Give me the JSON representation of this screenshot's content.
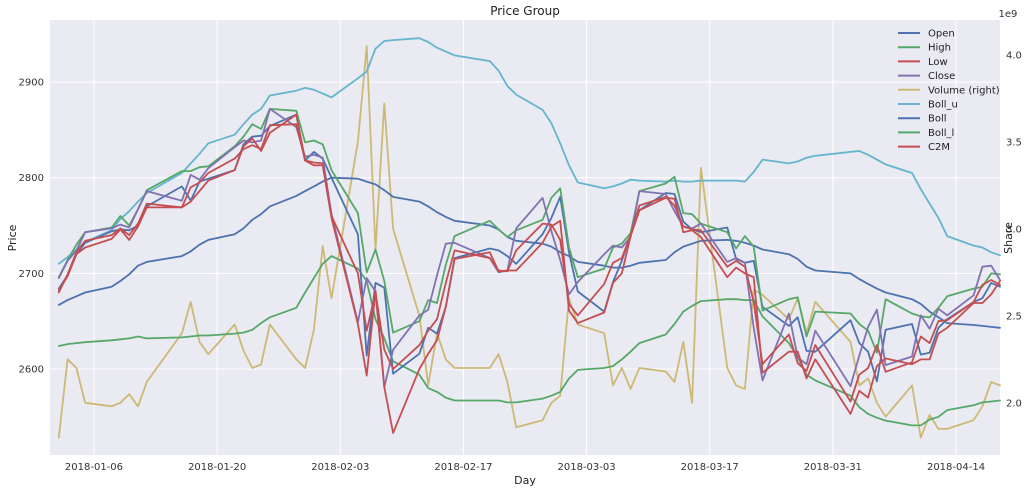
{
  "chart_data": {
    "type": "line",
    "title": "Price Group",
    "xlabel": "Day",
    "ylabel": "Price",
    "ylabel_right": "Share",
    "right_offset_label": "1e9",
    "xlim": [
      "2018-01-01",
      "2018-04-19"
    ],
    "ylim": [
      2510,
      2965
    ],
    "ylim_right": [
      1.7,
      4.2
    ],
    "x_ticks": [
      "2018-01-06",
      "2018-01-20",
      "2018-02-03",
      "2018-02-17",
      "2018-03-03",
      "2018-03-17",
      "2018-03-31",
      "2018-04-14"
    ],
    "y_ticks": [
      2600,
      2700,
      2800,
      2900
    ],
    "y_ticks_right": [
      "2.0",
      "2.5",
      "3.0",
      "3.5",
      "4.0"
    ],
    "grid": true,
    "legend_position": "top-right",
    "x": [
      "2018-01-02",
      "2018-01-03",
      "2018-01-04",
      "2018-01-05",
      "2018-01-08",
      "2018-01-09",
      "2018-01-10",
      "2018-01-11",
      "2018-01-12",
      "2018-01-16",
      "2018-01-17",
      "2018-01-18",
      "2018-01-19",
      "2018-01-22",
      "2018-01-23",
      "2018-01-24",
      "2018-01-25",
      "2018-01-26",
      "2018-01-29",
      "2018-01-30",
      "2018-01-31",
      "2018-02-01",
      "2018-02-02",
      "2018-02-05",
      "2018-02-06",
      "2018-02-07",
      "2018-02-08",
      "2018-02-09",
      "2018-02-12",
      "2018-02-13",
      "2018-02-14",
      "2018-02-15",
      "2018-02-16",
      "2018-02-20",
      "2018-02-21",
      "2018-02-22",
      "2018-02-23",
      "2018-02-26",
      "2018-02-27",
      "2018-02-28",
      "2018-03-01",
      "2018-03-02",
      "2018-03-05",
      "2018-03-06",
      "2018-03-07",
      "2018-03-08",
      "2018-03-09",
      "2018-03-12",
      "2018-03-13",
      "2018-03-14",
      "2018-03-15",
      "2018-03-16",
      "2018-03-19",
      "2018-03-20",
      "2018-03-21",
      "2018-03-22",
      "2018-03-23",
      "2018-03-26",
      "2018-03-27",
      "2018-03-28",
      "2018-03-29",
      "2018-04-02",
      "2018-04-03",
      "2018-04-04",
      "2018-04-05",
      "2018-04-06",
      "2018-04-09",
      "2018-04-10",
      "2018-04-11",
      "2018-04-12",
      "2018-04-13",
      "2018-04-16",
      "2018-04-17",
      "2018-04-18",
      "2018-04-19"
    ],
    "series": [
      {
        "name": "Open",
        "axis": "left",
        "color": "#4c72b0",
        "values": [
          2684,
          2698,
          2720,
          2732,
          2744,
          2746,
          2745,
          2750,
          2770,
          2791,
          2776,
          2796,
          2799,
          2808,
          2835,
          2843,
          2844,
          2854,
          2866,
          2818,
          2827,
          2820,
          2800,
          2741,
          2614,
          2690,
          2685,
          2595,
          2616,
          2643,
          2637,
          2665,
          2716,
          2726,
          2724,
          2718,
          2710,
          2741,
          2758,
          2780,
          2722,
          2681,
          2660,
          2691,
          2713,
          2741,
          2766,
          2784,
          2783,
          2754,
          2746,
          2743,
          2748,
          2715,
          2711,
          2713,
          2665,
          2645,
          2654,
          2619,
          2618,
          2651,
          2627,
          2618,
          2587,
          2641,
          2647,
          2615,
          2617,
          2643,
          2652,
          2670,
          2674,
          2690,
          2686
        ]
      },
      {
        "name": "High",
        "axis": "left",
        "color": "#55a868",
        "values": [
          2696,
          2714,
          2730,
          2743,
          2748,
          2760,
          2750,
          2767,
          2787,
          2807,
          2807,
          2811,
          2812,
          2833,
          2843,
          2856,
          2851,
          2872,
          2870,
          2837,
          2839,
          2835,
          2808,
          2763,
          2701,
          2725,
          2692,
          2638,
          2650,
          2672,
          2669,
          2709,
          2739,
          2755,
          2746,
          2738,
          2745,
          2756,
          2779,
          2789,
          2727,
          2696,
          2705,
          2727,
          2731,
          2742,
          2786,
          2794,
          2801,
          2763,
          2762,
          2752,
          2743,
          2726,
          2739,
          2728,
          2661,
          2673,
          2675,
          2634,
          2660,
          2658,
          2647,
          2640,
          2617,
          2673,
          2658,
          2655,
          2654,
          2664,
          2676,
          2684,
          2686,
          2700,
          2699
        ]
      },
      {
        "name": "Low",
        "axis": "left",
        "color": "#c44e52",
        "values": [
          2682,
          2697,
          2720,
          2727,
          2736,
          2746,
          2735,
          2749,
          2769,
          2769,
          2775,
          2786,
          2797,
          2808,
          2833,
          2841,
          2828,
          2847,
          2866,
          2818,
          2813,
          2813,
          2758,
          2647,
          2593,
          2682,
          2581,
          2533,
          2600,
          2616,
          2630,
          2665,
          2715,
          2722,
          2702,
          2703,
          2703,
          2732,
          2749,
          2755,
          2661,
          2648,
          2659,
          2690,
          2700,
          2739,
          2766,
          2779,
          2778,
          2743,
          2745,
          2738,
          2696,
          2706,
          2700,
          2696,
          2596,
          2618,
          2618,
          2590,
          2610,
          2553,
          2577,
          2570,
          2603,
          2611,
          2605,
          2610,
          2610,
          2637,
          2643,
          2669,
          2669,
          2678,
          2692
        ]
      },
      {
        "name": "Close",
        "axis": "left",
        "color": "#8172b2",
        "values": [
          2695,
          2713,
          2724,
          2743,
          2747,
          2751,
          2748,
          2767,
          2786,
          2776,
          2803,
          2798,
          2810,
          2832,
          2839,
          2837,
          2839,
          2872,
          2853,
          2822,
          2824,
          2821,
          2762,
          2649,
          2695,
          2681,
          2581,
          2620,
          2656,
          2662,
          2698,
          2731,
          2732,
          2716,
          2701,
          2703,
          2747,
          2779,
          2744,
          2714,
          2678,
          2691,
          2720,
          2729,
          2727,
          2738,
          2786,
          2783,
          2765,
          2749,
          2747,
          2752,
          2712,
          2716,
          2711,
          2643,
          2588,
          2658,
          2612,
          2605,
          2640,
          2582,
          2614,
          2644,
          2662,
          2604,
          2613,
          2656,
          2642,
          2663,
          2656,
          2677,
          2707,
          2708,
          2693
        ]
      },
      {
        "name": "Volume (right)",
        "axis": "right",
        "color": "#ccb974",
        "values": [
          1.8,
          2.25,
          2.2,
          2.0,
          1.98,
          2.0,
          2.05,
          1.98,
          2.12,
          2.4,
          2.58,
          2.35,
          2.28,
          2.45,
          2.3,
          2.2,
          2.22,
          2.45,
          2.25,
          2.2,
          2.42,
          2.9,
          2.6,
          3.5,
          4.05,
          2.88,
          3.72,
          3.0,
          2.5,
          2.1,
          2.4,
          2.25,
          2.2,
          2.2,
          2.28,
          2.12,
          1.86,
          1.9,
          2.0,
          2.04,
          2.6,
          2.45,
          2.4,
          2.1,
          2.2,
          2.08,
          2.2,
          2.18,
          2.12,
          2.35,
          2.0,
          3.35,
          2.2,
          2.1,
          2.08,
          2.65,
          2.62,
          2.48,
          2.6,
          2.4,
          2.58,
          2.35,
          2.1,
          2.14,
          2.0,
          1.92,
          2.1,
          1.8,
          1.93,
          1.85,
          1.85,
          1.9,
          1.98,
          2.12,
          2.1
        ]
      },
      {
        "name": "Boll_u",
        "axis": "left",
        "color": "#64b5cd",
        "values": [
          2710,
          2717,
          2725,
          2733,
          2745,
          2757,
          2765,
          2775,
          2784,
          2805,
          2815,
          2825,
          2836,
          2845,
          2856,
          2866,
          2872,
          2886,
          2891,
          2894,
          2892,
          2888,
          2884,
          2904,
          2911,
          2935,
          2943,
          2944,
          2946,
          2942,
          2936,
          2932,
          2928,
          2922,
          2912,
          2896,
          2887,
          2871,
          2857,
          2836,
          2813,
          2795,
          2789,
          2791,
          2794,
          2798,
          2797,
          2796,
          2797,
          2796,
          2796,
          2797,
          2797,
          2797,
          2796,
          2806,
          2819,
          2815,
          2817,
          2821,
          2823,
          2827,
          2828,
          2824,
          2819,
          2814,
          2805,
          2788,
          2773,
          2758,
          2739,
          2729,
          2727,
          2722,
          2719
        ]
      },
      {
        "name": "Boll",
        "axis": "left",
        "color": "#4c72b0",
        "values": [
          2667,
          2672,
          2676,
          2680,
          2686,
          2692,
          2699,
          2708,
          2712,
          2718,
          2723,
          2730,
          2735,
          2741,
          2747,
          2756,
          2762,
          2770,
          2781,
          2786,
          2791,
          2796,
          2800,
          2799,
          2796,
          2793,
          2787,
          2780,
          2775,
          2770,
          2764,
          2759,
          2755,
          2750,
          2746,
          2738,
          2734,
          2731,
          2728,
          2722,
          2718,
          2712,
          2708,
          2706,
          2706,
          2708,
          2711,
          2714,
          2722,
          2728,
          2731,
          2734,
          2735,
          2734,
          2732,
          2729,
          2725,
          2720,
          2715,
          2707,
          2703,
          2700,
          2694,
          2689,
          2684,
          2680,
          2673,
          2668,
          2660,
          2654,
          2648,
          2646,
          2645,
          2644,
          2643
        ]
      },
      {
        "name": "Boll_l",
        "axis": "left",
        "color": "#55a868",
        "values": [
          2624,
          2626,
          2627,
          2628,
          2630,
          2631,
          2632,
          2634,
          2632,
          2633,
          2634,
          2635,
          2635,
          2637,
          2638,
          2641,
          2648,
          2654,
          2664,
          2680,
          2695,
          2710,
          2718,
          2705,
          2692,
          2652,
          2632,
          2608,
          2594,
          2580,
          2576,
          2570,
          2567,
          2567,
          2567,
          2565,
          2565,
          2569,
          2572,
          2576,
          2590,
          2599,
          2601,
          2603,
          2610,
          2618,
          2627,
          2636,
          2647,
          2660,
          2666,
          2671,
          2673,
          2673,
          2672,
          2672,
          2655,
          2627,
          2612,
          2594,
          2588,
          2572,
          2560,
          2553,
          2549,
          2546,
          2541,
          2541,
          2547,
          2550,
          2557,
          2562,
          2565,
          2566,
          2567
        ]
      },
      {
        "name": "C2M",
        "axis": "left",
        "color": "#c44e52",
        "values": [
          2680,
          2699,
          2722,
          2734,
          2740,
          2747,
          2740,
          2752,
          2773,
          2769,
          2790,
          2795,
          2805,
          2820,
          2830,
          2834,
          2830,
          2855,
          2856,
          2818,
          2816,
          2815,
          2760,
          2700,
          2640,
          2680,
          2620,
          2600,
          2625,
          2640,
          2652,
          2690,
          2724,
          2716,
          2703,
          2702,
          2724,
          2752,
          2751,
          2735,
          2668,
          2656,
          2689,
          2711,
          2716,
          2740,
          2771,
          2780,
          2771,
          2749,
          2746,
          2745,
          2707,
          2713,
          2707,
          2670,
          2605,
          2636,
          2606,
          2598,
          2625,
          2566,
          2594,
          2601,
          2625,
          2597,
          2607,
          2634,
          2627,
          2650,
          2651,
          2670,
          2688,
          2693,
          2688
        ]
      }
    ]
  }
}
